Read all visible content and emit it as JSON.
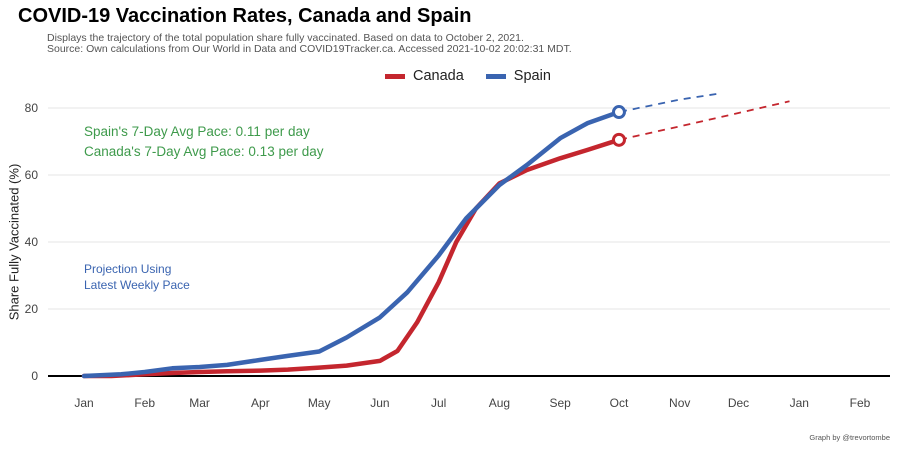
{
  "title": "COVID-19 Vaccination Rates, Canada and Spain",
  "subtitle_line1": "Displays the trajectory of the total population share fully vaccinated. Based on data to October 2, 2021.",
  "subtitle_line2": "Source: Own calculations from Our World in Data and COVID19Tracker.ca. Accessed 2021-10-02 20:02:31 MDT.",
  "annotations": {
    "spain_pace": "Spain's 7-Day Avg Pace: 0.11 per day",
    "canada_pace": "Canada's 7-Day Avg Pace: 0.13 per day",
    "projection_line1": "Projection Using",
    "projection_line2": "Latest Weekly Pace"
  },
  "credit": "Graph by @trevortombe",
  "chart_data": {
    "type": "line",
    "title": "COVID-19 Vaccination Rates, Canada and Spain",
    "xlabel": "",
    "ylabel": "Share Fully Vaccinated (%)",
    "x_tick_labels": [
      "Jan",
      "Feb",
      "Mar",
      "Apr",
      "May",
      "Jun",
      "Jul",
      "Aug",
      "Sep",
      "Oct",
      "Nov",
      "Dec",
      "Jan",
      "Feb"
    ],
    "x_range": [
      "2021-01-01",
      "2022-02-01"
    ],
    "ylim": [
      0,
      84
    ],
    "y_ticks": [
      0,
      20,
      40,
      60,
      80
    ],
    "grid": true,
    "legend_position": "top",
    "series": [
      {
        "name": "Canada",
        "color": "#c4262e",
        "points": [
          [
            "2021-01-01",
            0
          ],
          [
            "2021-01-15",
            0
          ],
          [
            "2021-02-01",
            0.5
          ],
          [
            "2021-02-15",
            0.9
          ],
          [
            "2021-03-01",
            1.2
          ],
          [
            "2021-03-15",
            1.4
          ],
          [
            "2021-04-01",
            1.6
          ],
          [
            "2021-04-15",
            1.9
          ],
          [
            "2021-05-01",
            2.5
          ],
          [
            "2021-05-15",
            3.1
          ],
          [
            "2021-06-01",
            4.5
          ],
          [
            "2021-06-10",
            7.5
          ],
          [
            "2021-06-20",
            16
          ],
          [
            "2021-07-01",
            28
          ],
          [
            "2021-07-10",
            40
          ],
          [
            "2021-07-20",
            50
          ],
          [
            "2021-08-01",
            57.5
          ],
          [
            "2021-08-15",
            61.5
          ],
          [
            "2021-09-01",
            65
          ],
          [
            "2021-09-15",
            67.5
          ],
          [
            "2021-10-01",
            70.5
          ]
        ],
        "projection": [
          [
            "2021-10-01",
            70.5
          ],
          [
            "2021-11-01",
            74.5
          ],
          [
            "2021-12-01",
            78.5
          ],
          [
            "2021-12-27",
            82
          ]
        ]
      },
      {
        "name": "Spain",
        "color": "#3a64b0",
        "points": [
          [
            "2021-01-01",
            0
          ],
          [
            "2021-01-20",
            0.5
          ],
          [
            "2021-02-01",
            1.2
          ],
          [
            "2021-02-15",
            2.3
          ],
          [
            "2021-03-01",
            2.7
          ],
          [
            "2021-03-15",
            3.3
          ],
          [
            "2021-04-01",
            4.8
          ],
          [
            "2021-04-15",
            6.0
          ],
          [
            "2021-05-01",
            7.3
          ],
          [
            "2021-05-15",
            11.5
          ],
          [
            "2021-06-01",
            17.5
          ],
          [
            "2021-06-15",
            25
          ],
          [
            "2021-07-01",
            36
          ],
          [
            "2021-07-15",
            47
          ],
          [
            "2021-08-01",
            57
          ],
          [
            "2021-08-15",
            63
          ],
          [
            "2021-09-01",
            71
          ],
          [
            "2021-09-15",
            75.5
          ],
          [
            "2021-10-01",
            78.8
          ]
        ],
        "projection": [
          [
            "2021-10-01",
            78.8
          ],
          [
            "2021-11-01",
            82.5
          ],
          [
            "2021-11-20",
            84.2
          ]
        ]
      }
    ]
  }
}
